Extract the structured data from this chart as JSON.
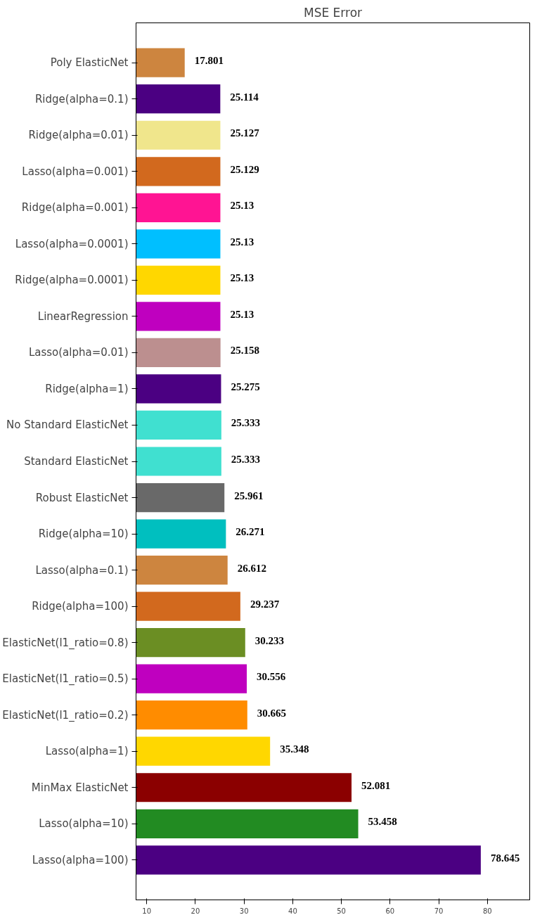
{
  "chart_data": {
    "type": "bar",
    "orientation": "horizontal",
    "title": "MSE Error",
    "categories": [
      "Poly ElasticNet",
      "Ridge(alpha=0.1)",
      "Ridge(alpha=0.01)",
      "Lasso(alpha=0.001)",
      "Ridge(alpha=0.001)",
      "Lasso(alpha=0.0001)",
      "Ridge(alpha=0.0001)",
      "LinearRegression",
      "Lasso(alpha=0.01)",
      "Ridge(alpha=1)",
      "No Standard ElasticNet",
      "Standard ElasticNet",
      "Robust ElasticNet",
      "Ridge(alpha=10)",
      "Lasso(alpha=0.1)",
      "Ridge(alpha=100)",
      "ElasticNet(l1_ratio=0.8)",
      "ElasticNet(l1_ratio=0.5)",
      "ElasticNet(l1_ratio=0.2)",
      "Lasso(alpha=1)",
      "MinMax ElasticNet",
      "Lasso(alpha=10)",
      "Lasso(alpha=100)"
    ],
    "values": [
      17.801,
      25.114,
      25.127,
      25.129,
      25.13,
      25.13,
      25.13,
      25.13,
      25.158,
      25.275,
      25.333,
      25.333,
      25.961,
      26.271,
      26.612,
      29.237,
      30.233,
      30.556,
      30.665,
      35.348,
      52.081,
      53.458,
      78.645
    ],
    "colors": [
      "#cd853f",
      "#4b0082",
      "#f0e68c",
      "#d2691e",
      "#ff1493",
      "#00bfff",
      "#ffd700",
      "#bf00bf",
      "#bc8f8f",
      "#4b0082",
      "#40e0d0",
      "#40e0d0",
      "#696969",
      "#00bfbf",
      "#cd853f",
      "#d2691e",
      "#6b8e23",
      "#bf00bf",
      "#ff8c00",
      "#ffd700",
      "#8b0000",
      "#228b22",
      "#4b0082"
    ],
    "xlim": [
      7.8,
      88.7
    ],
    "xticks": [
      10,
      20,
      30,
      40,
      50,
      60,
      70,
      80
    ],
    "data_labels": true,
    "grid": false
  }
}
